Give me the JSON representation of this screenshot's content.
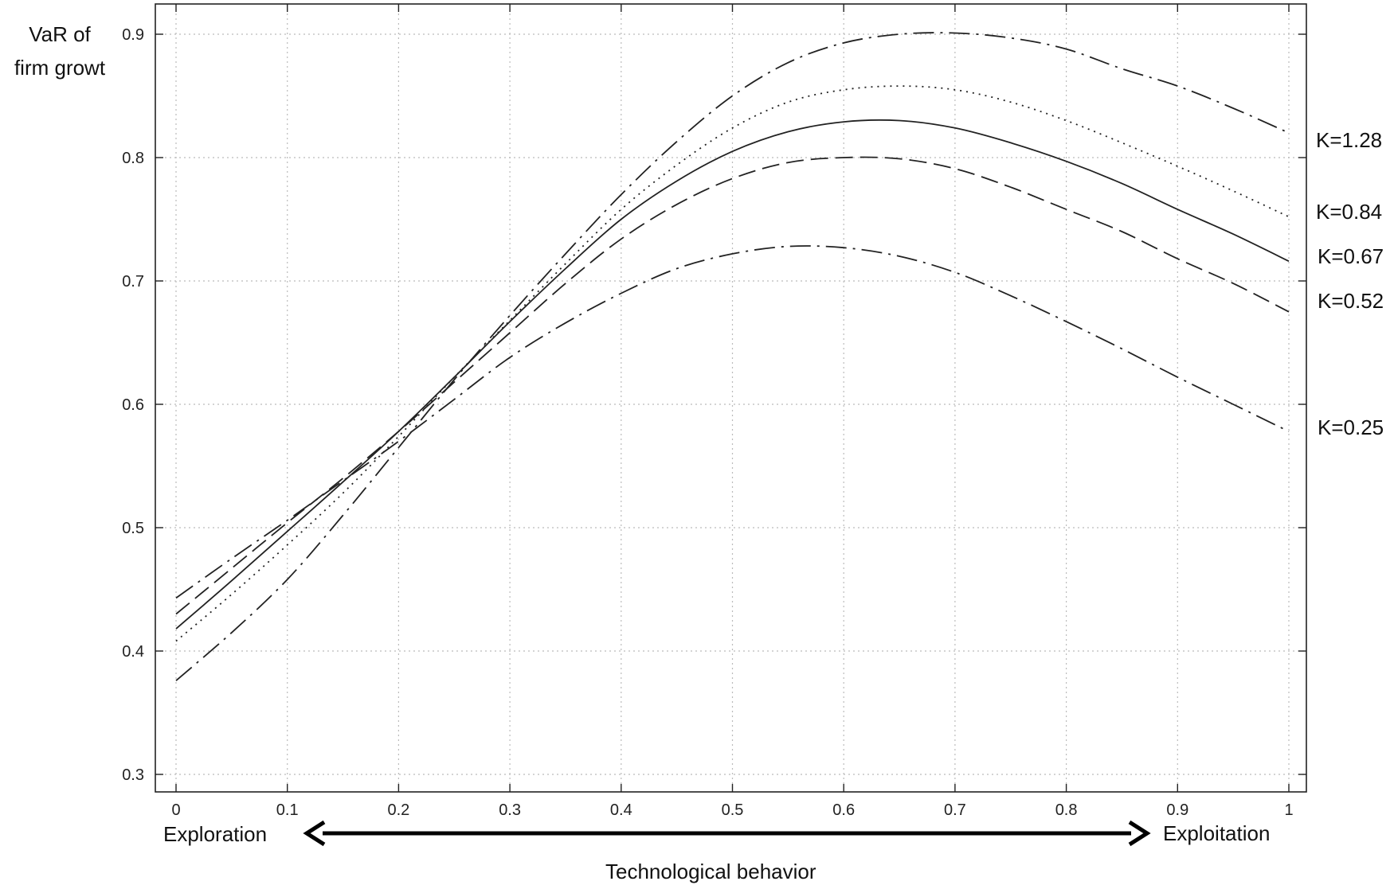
{
  "chart_data": {
    "type": "line",
    "ylabel_lines": [
      "VaR of",
      "firm growt"
    ],
    "xlabel": "Technological behavior",
    "annotations": {
      "left": "Exploration",
      "right": "Exploitation"
    },
    "xlim": [
      0,
      1
    ],
    "ylim": [
      0.3,
      0.9
    ],
    "xticks": [
      0,
      0.1,
      0.2,
      0.3,
      0.4,
      0.5,
      0.6,
      0.7,
      0.8,
      0.9,
      1
    ],
    "xtick_labels": [
      "0",
      "0.1",
      "0.2",
      "0.3",
      "0.4",
      "0.5",
      "0.6",
      "0.7",
      "0.8",
      "0.9",
      "1"
    ],
    "yticks": [
      0.3,
      0.4,
      0.5,
      0.6,
      0.7,
      0.8,
      0.9
    ],
    "ytick_labels": [
      "0.3",
      "0.4",
      "0.5",
      "0.6",
      "0.7",
      "0.8",
      "0.9"
    ],
    "grid": true,
    "x": [
      0,
      0.05,
      0.1,
      0.15,
      0.2,
      0.25,
      0.3,
      0.35,
      0.4,
      0.45,
      0.5,
      0.55,
      0.6,
      0.65,
      0.7,
      0.75,
      0.8,
      0.85,
      0.9,
      0.95,
      1
    ],
    "series": [
      {
        "name": "K=1.28",
        "style": "dashdot",
        "values": [
          0.376,
          0.415,
          0.458,
          0.51,
          0.565,
          0.62,
          0.672,
          0.722,
          0.77,
          0.813,
          0.85,
          0.877,
          0.893,
          0.9,
          0.901,
          0.897,
          0.888,
          0.872,
          0.858,
          0.84,
          0.82
        ]
      },
      {
        "name": "K=0.84",
        "style": "dotted",
        "values": [
          0.408,
          0.446,
          0.486,
          0.528,
          0.574,
          0.622,
          0.668,
          0.714,
          0.758,
          0.794,
          0.824,
          0.845,
          0.855,
          0.858,
          0.855,
          0.845,
          0.83,
          0.812,
          0.793,
          0.773,
          0.752
        ]
      },
      {
        "name": "K=0.67",
        "style": "solid",
        "values": [
          0.418,
          0.457,
          0.497,
          0.537,
          0.578,
          0.622,
          0.667,
          0.71,
          0.75,
          0.781,
          0.805,
          0.821,
          0.829,
          0.83,
          0.824,
          0.812,
          0.797,
          0.779,
          0.758,
          0.738,
          0.716
        ]
      },
      {
        "name": "K=0.52",
        "style": "dashed",
        "values": [
          0.43,
          0.467,
          0.504,
          0.54,
          0.578,
          0.618,
          0.658,
          0.698,
          0.734,
          0.762,
          0.783,
          0.796,
          0.8,
          0.799,
          0.791,
          0.776,
          0.758,
          0.74,
          0.718,
          0.698,
          0.675
        ]
      },
      {
        "name": "K=0.25",
        "style": "dashdot",
        "values": [
          0.443,
          0.475,
          0.506,
          0.538,
          0.57,
          0.604,
          0.638,
          0.666,
          0.69,
          0.71,
          0.722,
          0.728,
          0.727,
          0.72,
          0.707,
          0.688,
          0.667,
          0.645,
          0.622,
          0.6,
          0.578
        ]
      }
    ]
  }
}
